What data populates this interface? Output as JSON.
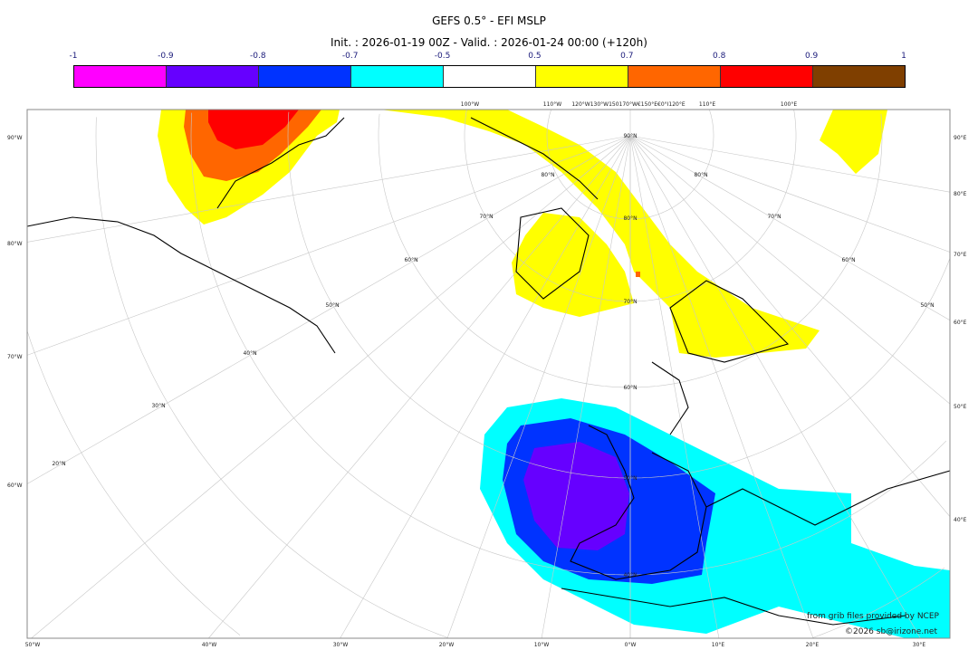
{
  "title": "GEFS 0.5° - EFI MSLP",
  "subtitle": "Init. : 2026-01-19 00Z - Valid. : 2026-01-24 00:00 (+120h)",
  "colorbar": {
    "ticks": [
      "-1",
      "-0.9",
      "-0.8",
      "-0.7",
      "-0.5",
      "0.5",
      "0.7",
      "0.8",
      "0.9",
      "1"
    ],
    "colors": [
      "#ff00ff",
      "#6600ff",
      "#0033ff",
      "#00ffff",
      "#ffffff",
      "#ffff00",
      "#ff6600",
      "#ff0000",
      "#7f3f00"
    ]
  },
  "map": {
    "top_labels": [
      "100°W",
      "110°W",
      "120°W130°W150170°W€150°E€0°I120°E",
      "110°E",
      "100°E"
    ],
    "left_labels": [
      "90°W",
      "80°W",
      "70°W",
      "60°W"
    ],
    "right_labels": [
      "90°E",
      "80°E",
      "70°E",
      "60°E",
      "50°E",
      "40°E"
    ],
    "bottom_labels": [
      "50°W",
      "40°W",
      "30°W",
      "20°W",
      "10°W",
      "0°W",
      "10°E",
      "20°E",
      "30°E"
    ],
    "lat_labels_center": [
      "90°N",
      "80°N",
      "70°N",
      "60°N",
      "50°N",
      "40°N"
    ],
    "lat_labels_left": [
      "80°N",
      "70°N",
      "60°N",
      "50°N",
      "40°N",
      "30°N",
      "20°N"
    ],
    "lat_labels_right": [
      "80°N",
      "70°N",
      "60°N",
      "50°N"
    ]
  },
  "credits": {
    "line1": "from grib files provided by NCEP",
    "line2": "©2026 sb@irizone.net"
  }
}
